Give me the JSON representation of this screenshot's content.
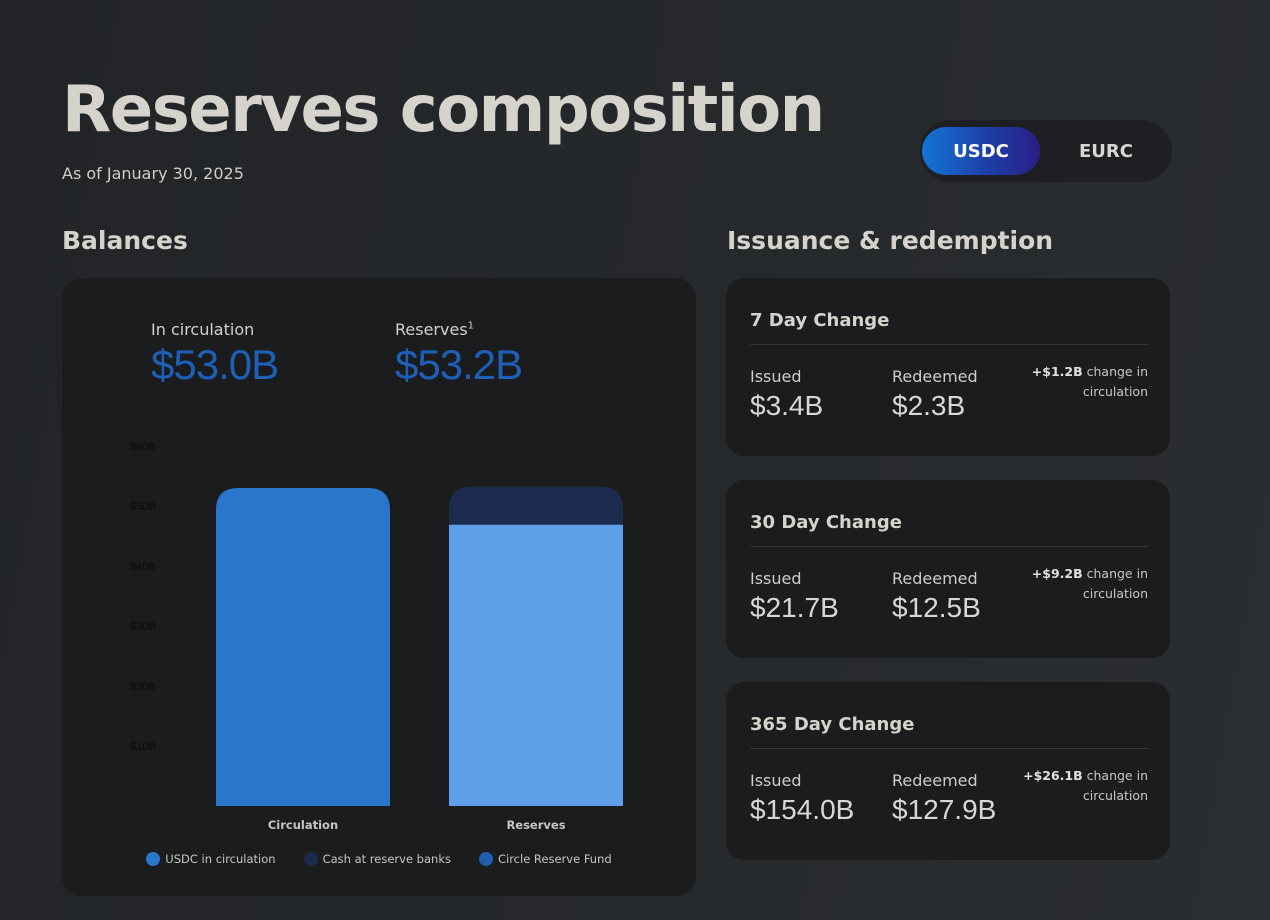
{
  "page": {
    "title": "Reserves composition",
    "as_of": "As of January 30, 2025"
  },
  "currency_toggle": {
    "options": [
      "USDC",
      "EURC"
    ],
    "selected": "USDC"
  },
  "balances": {
    "heading": "Balances",
    "in_circulation_label": "In circulation",
    "in_circulation_value": "$53.0B",
    "reserves_label": "Reserves",
    "reserves_footnote": "1",
    "reserves_value": "$53.2B"
  },
  "chart_data": {
    "type": "bar",
    "stacked": true,
    "categories": [
      "Circulation",
      "Reserves"
    ],
    "series": [
      {
        "name": "USDC in circulation",
        "values": [
          53.0,
          0
        ],
        "color": "#2a76cb"
      },
      {
        "name": "Circle Reserve Fund",
        "values": [
          0,
          46.9
        ],
        "color": "#5fa1e9"
      },
      {
        "name": "Cash at reserve banks",
        "values": [
          0,
          6.3
        ],
        "color": "#1c2a4d"
      }
    ],
    "y_ticks": [
      "$10B",
      "$20B",
      "$30B",
      "$40B",
      "$50B",
      "$60B"
    ],
    "ylim": [
      0,
      60
    ],
    "legend_labels": [
      "USDC in circulation",
      "Cash at reserve banks",
      "Circle Reserve Fund"
    ],
    "legend_colors": [
      "#2a76cb",
      "#1c2a4d",
      "#1f5fb0"
    ],
    "legend_position": "bottom",
    "grid": false
  },
  "issuance": {
    "heading": "Issuance & redemption",
    "cards": [
      {
        "title": "7 Day Change",
        "issued_label": "Issued",
        "issued": "$3.4B",
        "redeemed_label": "Redeemed",
        "redeemed": "$2.3B",
        "change": "+$1.2B",
        "change_text": "change in circulation"
      },
      {
        "title": "30 Day Change",
        "issued_label": "Issued",
        "issued": "$21.7B",
        "redeemed_label": "Redeemed",
        "redeemed": "$12.5B",
        "change": "+$9.2B",
        "change_text": "change in circulation"
      },
      {
        "title": "365 Day Change",
        "issued_label": "Issued",
        "issued": "$154.0B",
        "redeemed_label": "Redeemed",
        "redeemed": "$127.9B",
        "change": "+$26.1B",
        "change_text": "change in circulation"
      }
    ]
  }
}
